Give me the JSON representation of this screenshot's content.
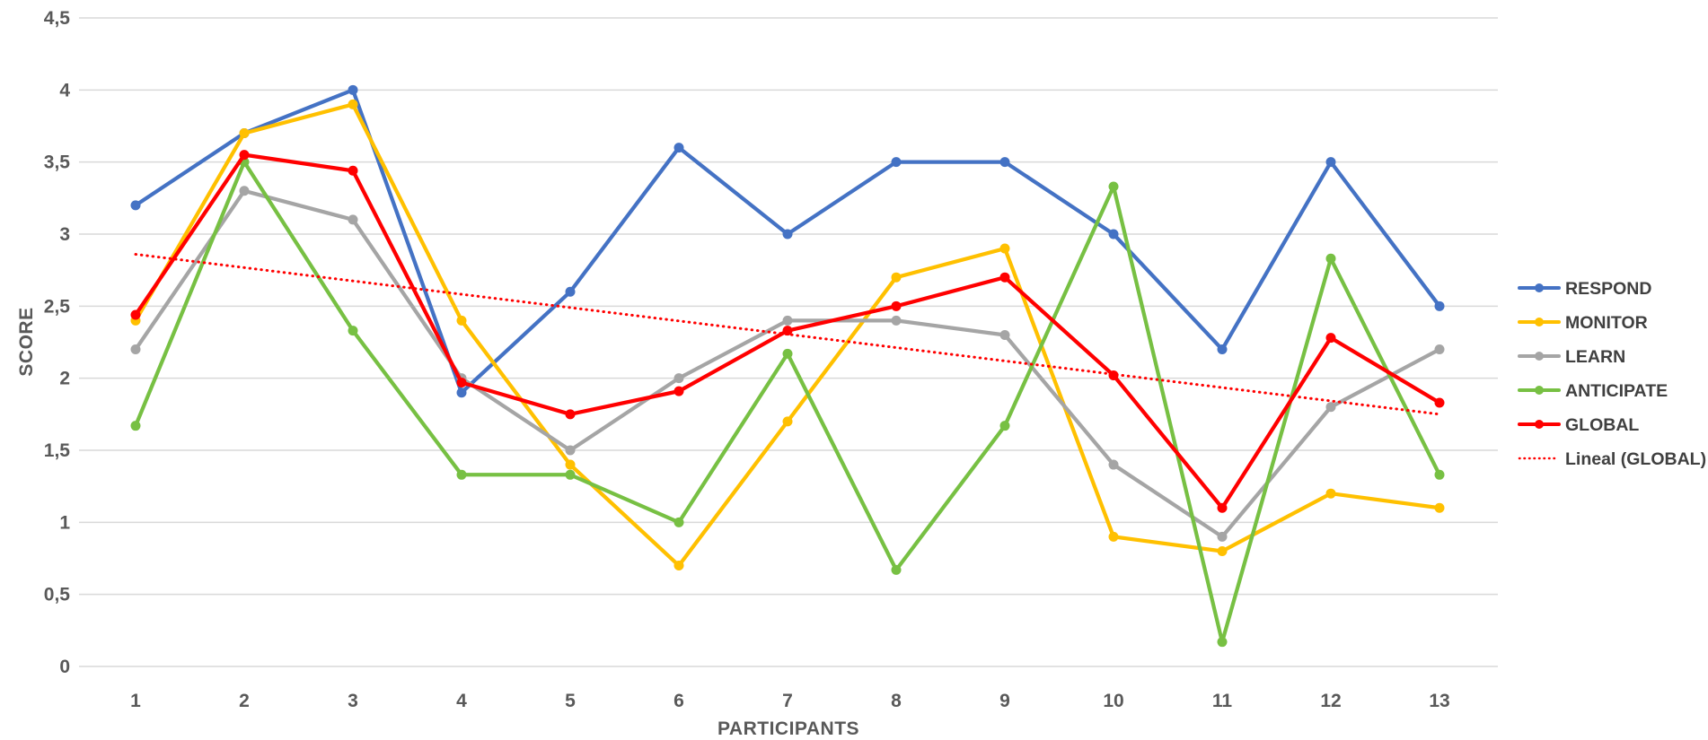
{
  "chart_data": {
    "type": "line",
    "title": "",
    "xlabel": "PARTICIPANTS",
    "ylabel": "SCORE",
    "categories": [
      "1",
      "2",
      "3",
      "4",
      "5",
      "6",
      "7",
      "8",
      "9",
      "10",
      "11",
      "12",
      "13"
    ],
    "series": [
      {
        "name": "RESPOND",
        "color": "#4472C4",
        "values": [
          3.2,
          3.7,
          4.0,
          1.9,
          2.6,
          3.6,
          3.0,
          3.5,
          3.5,
          3.0,
          2.2,
          3.5,
          2.5
        ]
      },
      {
        "name": "MONITOR",
        "color": "#FFC000",
        "values": [
          2.4,
          3.7,
          3.9,
          2.4,
          1.4,
          0.7,
          1.7,
          2.7,
          2.9,
          0.9,
          0.8,
          1.2,
          1.1
        ]
      },
      {
        "name": "LEARN",
        "color": "#A5A5A5",
        "values": [
          2.2,
          3.3,
          3.1,
          2.0,
          1.5,
          2.0,
          2.4,
          2.4,
          2.3,
          1.4,
          0.9,
          1.8,
          2.2
        ]
      },
      {
        "name": "ANTICIPATE",
        "color": "#77C043",
        "values": [
          1.67,
          3.5,
          2.33,
          1.33,
          1.33,
          1.0,
          2.17,
          0.67,
          1.67,
          3.33,
          0.17,
          2.83,
          1.33
        ]
      },
      {
        "name": "GLOBAL",
        "color": "#FF0000",
        "values": [
          2.44,
          3.55,
          3.44,
          1.97,
          1.75,
          1.91,
          2.33,
          2.5,
          2.7,
          2.02,
          1.1,
          2.28,
          1.83
        ]
      }
    ],
    "trendline": {
      "name": "Lineal (GLOBAL)",
      "color": "#FF0000",
      "style": "dotted",
      "start_value": 2.86,
      "end_value": 1.75
    },
    "y_ticks": [
      {
        "label": "4,5",
        "value": 4.5
      },
      {
        "label": "4",
        "value": 4.0
      },
      {
        "label": "3,5",
        "value": 3.5
      },
      {
        "label": "3",
        "value": 3.0
      },
      {
        "label": "2,5",
        "value": 2.5
      },
      {
        "label": "2",
        "value": 2.0
      },
      {
        "label": "1,5",
        "value": 1.5
      },
      {
        "label": "1",
        "value": 1.0
      },
      {
        "label": "0,5",
        "value": 0.5
      },
      {
        "label": "0",
        "value": 0.0
      }
    ],
    "ylim": [
      0,
      4.5
    ],
    "grid": "horizontal",
    "legend_position": "right",
    "decimal_separator": ",",
    "colors": {
      "gridline": "#D9D9D9",
      "tick_text": "#595959",
      "legend_text": "#404040"
    }
  }
}
